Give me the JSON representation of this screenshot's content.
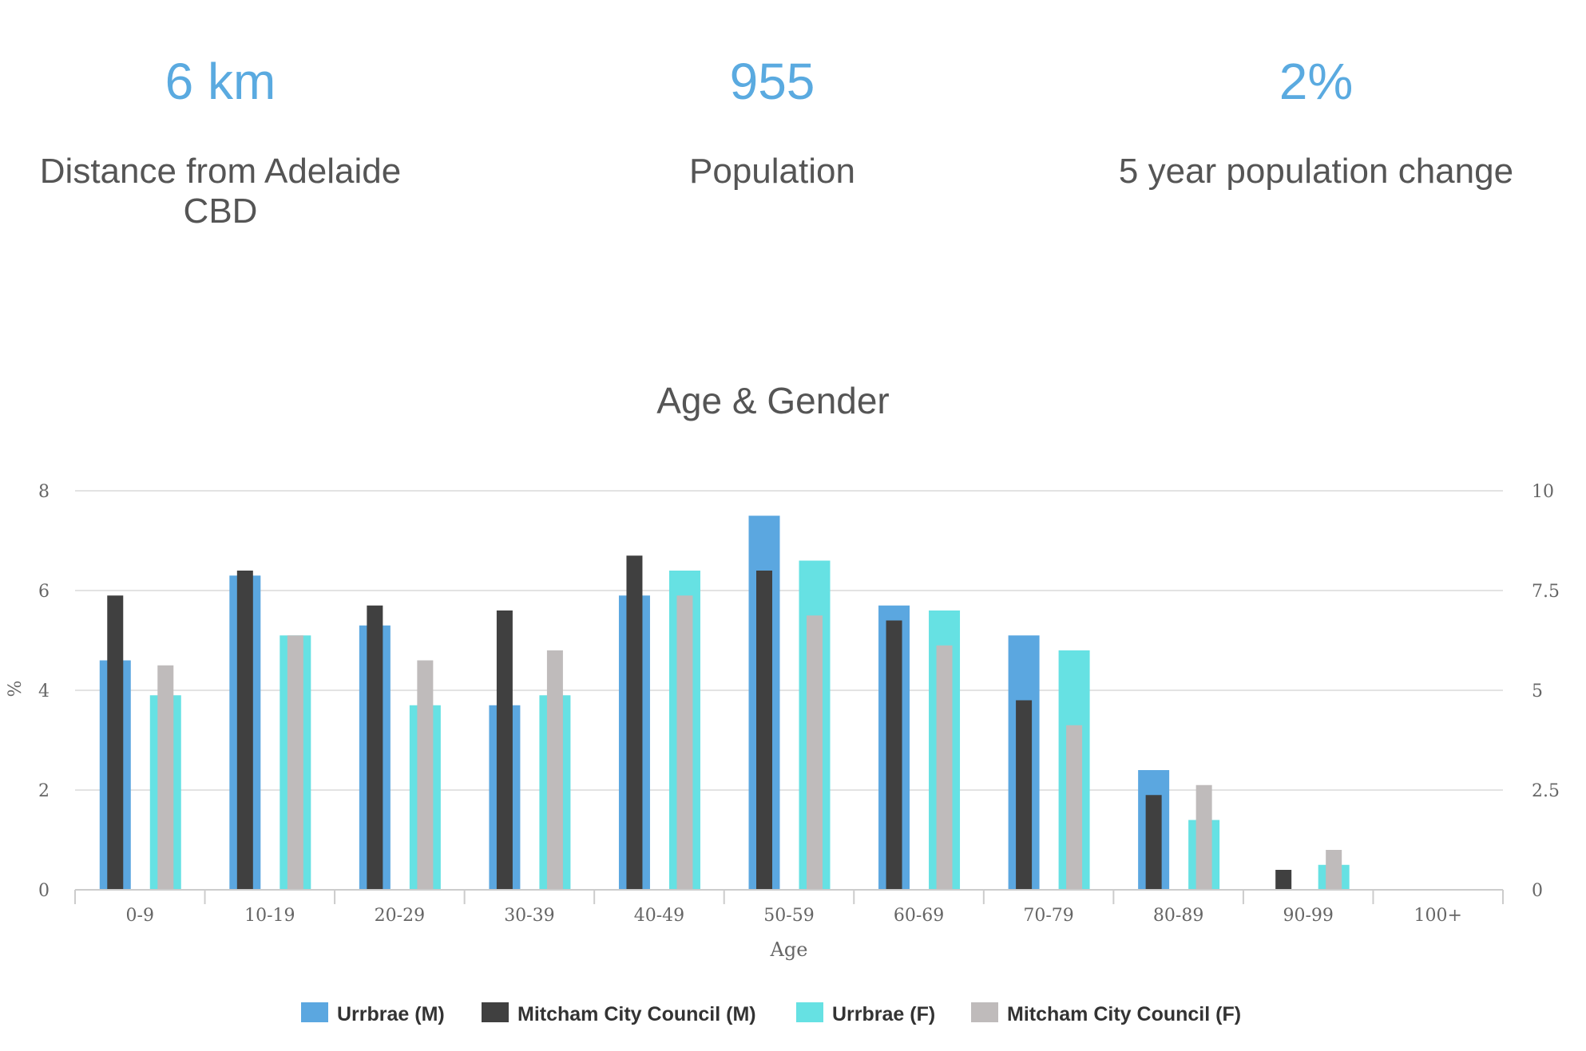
{
  "stats": [
    {
      "value": "6 km",
      "label": "Distance from Adelaide CBD"
    },
    {
      "value": "955",
      "label": "Population"
    },
    {
      "value": "2%",
      "label": "5 year population change"
    }
  ],
  "colors": {
    "accent": "#5aaae0",
    "series": [
      "#5ba7e0",
      "#404040",
      "#66e1e3",
      "#bfbbbb"
    ],
    "grid": "#e3e3e3",
    "axis": "#cccccc"
  },
  "chart_data": {
    "type": "bar",
    "title": "Age & Gender",
    "xlabel": "Age",
    "ylabel": "%",
    "ylim": [
      0,
      8
    ],
    "yticks": [
      "0",
      "2",
      "4",
      "6",
      "8"
    ],
    "y2lim": [
      0,
      10
    ],
    "y2ticks": [
      "0",
      "2.5",
      "5",
      "7.5",
      "10"
    ],
    "grid": true,
    "legend": "bottom-center",
    "categories": [
      "0-9",
      "10-19",
      "20-29",
      "30-39",
      "40-49",
      "50-59",
      "60-69",
      "70-79",
      "80-89",
      "90-99",
      "100+"
    ],
    "series": [
      {
        "name": "Urrbrae (M)",
        "values": [
          4.6,
          6.3,
          5.3,
          3.7,
          5.9,
          7.5,
          5.7,
          5.1,
          2.4,
          0,
          0
        ]
      },
      {
        "name": "Mitcham City Council (M)",
        "values": [
          5.9,
          6.4,
          5.7,
          5.6,
          6.7,
          6.4,
          5.4,
          3.8,
          1.9,
          0.4,
          0
        ]
      },
      {
        "name": "Urrbrae (F)",
        "values": [
          3.9,
          5.1,
          3.7,
          3.9,
          6.4,
          6.6,
          5.6,
          4.8,
          1.4,
          0.5,
          0
        ]
      },
      {
        "name": "Mitcham City Council (F)",
        "values": [
          4.5,
          5.1,
          4.6,
          4.8,
          5.9,
          5.5,
          4.9,
          3.3,
          2.1,
          0.8,
          0
        ]
      }
    ]
  }
}
